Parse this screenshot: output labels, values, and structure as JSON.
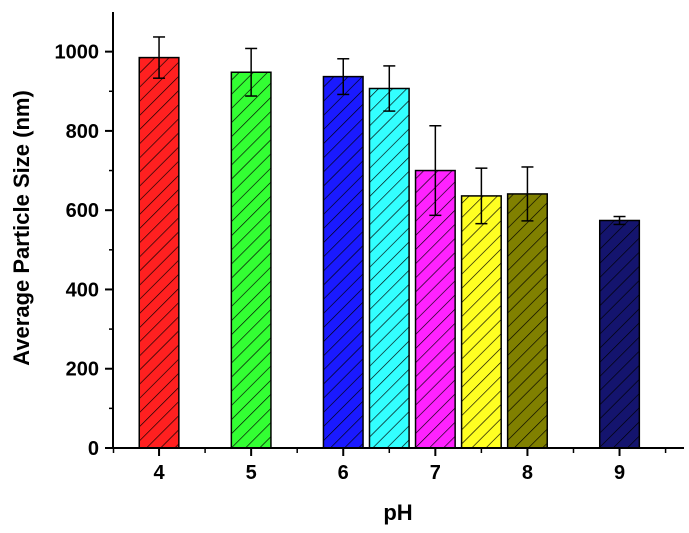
{
  "chart_data": {
    "type": "bar",
    "xlabel": "pH",
    "ylabel": "Average Particle Size (nm)",
    "ylim": [
      0,
      1100
    ],
    "xlim": [
      3.5,
      9.7
    ],
    "xticks": [
      "4",
      "5",
      "6",
      "7",
      "8",
      "9"
    ],
    "yticks": [
      "0",
      "200",
      "400",
      "600",
      "800",
      "1000"
    ],
    "bar_width": 0.43,
    "fill_pattern": "diagonal-hatch",
    "bars": [
      {
        "x": 4.0,
        "value": 985,
        "error": 52,
        "color": "#ff2020"
      },
      {
        "x": 5.0,
        "value": 948,
        "error": 60,
        "color": "#33ff33"
      },
      {
        "x": 6.0,
        "value": 937,
        "error": 45,
        "color": "#1a1aff"
      },
      {
        "x": 6.5,
        "value": 907,
        "error": 57,
        "color": "#33ffff"
      },
      {
        "x": 7.0,
        "value": 700,
        "error": 113,
        "color": "#ff22ff"
      },
      {
        "x": 7.5,
        "value": 636,
        "error": 70,
        "color": "#ffff22"
      },
      {
        "x": 8.0,
        "value": 641,
        "error": 68,
        "color": "#808000"
      },
      {
        "x": 9.0,
        "value": 574,
        "error": 10,
        "color": "#14146e"
      }
    ]
  }
}
